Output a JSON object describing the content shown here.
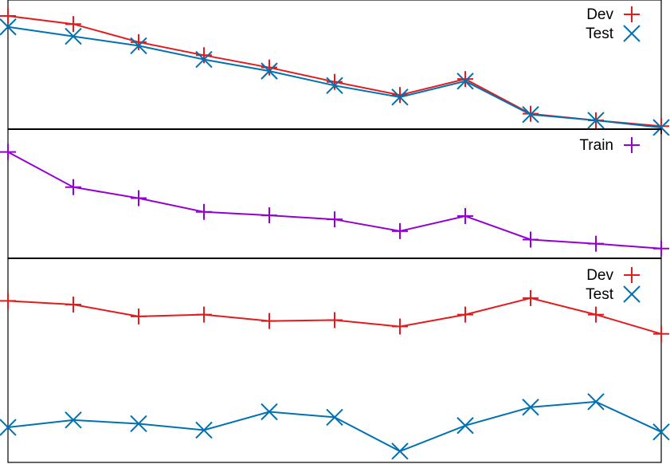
{
  "colors": {
    "dev": "#e41a1c",
    "test": "#0072b2",
    "train": "#9400d3"
  },
  "chart_data": [
    {
      "type": "line",
      "panel": "top",
      "title": "",
      "xlabel": "",
      "ylabel": "",
      "x": [
        0,
        1,
        2,
        3,
        4,
        5,
        6,
        7,
        8,
        9,
        10
      ],
      "ylim": [
        0,
        100
      ],
      "grid": false,
      "legend_position": "top-right",
      "series": [
        {
          "name": "Dev",
          "marker": "plus",
          "color": "#e41a1c",
          "values": [
            94.6,
            87.7,
            72.4,
            61.3,
            50.9,
            38.7,
            27.6,
            41.1,
            11.7,
            6.1,
            1.2
          ]
        },
        {
          "name": "Test",
          "marker": "cross",
          "color": "#0072b2",
          "values": [
            85.3,
            77.3,
            69.3,
            57.7,
            47.9,
            35.6,
            25.8,
            39.3,
            11.0,
            6.1,
            0.0
          ]
        }
      ]
    },
    {
      "type": "line",
      "panel": "middle",
      "title": "",
      "xlabel": "",
      "ylabel": "",
      "x": [
        0,
        1,
        2,
        3,
        4,
        5,
        6,
        7,
        8,
        9,
        10
      ],
      "ylim": [
        0,
        100
      ],
      "grid": false,
      "legend_position": "top-right",
      "series": [
        {
          "name": "Train",
          "marker": "plus",
          "color": "#9400d3",
          "values": [
            91.0,
            59.5,
            49.6,
            37.3,
            34.2,
            30.6,
            20.1,
            33.6,
            12.5,
            8.8,
            4.5
          ]
        }
      ]
    },
    {
      "type": "line",
      "panel": "bottom",
      "title": "",
      "xlabel": "",
      "ylabel": "",
      "x": [
        0,
        1,
        2,
        3,
        4,
        5,
        6,
        7,
        8,
        9,
        10
      ],
      "ylim": [
        0,
        100
      ],
      "grid": false,
      "legend_position": "top-right",
      "series": [
        {
          "name": "Dev",
          "marker": "plus",
          "color": "#e41a1c",
          "values": [
            85.5,
            83.5,
            77.0,
            78.0,
            74.5,
            75.0,
            71.5,
            78.0,
            87.0,
            78.0,
            67.5
          ]
        },
        {
          "name": "Test",
          "marker": "cross",
          "color": "#0072b2",
          "values": [
            16.5,
            20.5,
            18.5,
            15.0,
            25.0,
            22.0,
            3.5,
            17.5,
            27.5,
            30.5,
            14.0
          ]
        }
      ]
    }
  ]
}
